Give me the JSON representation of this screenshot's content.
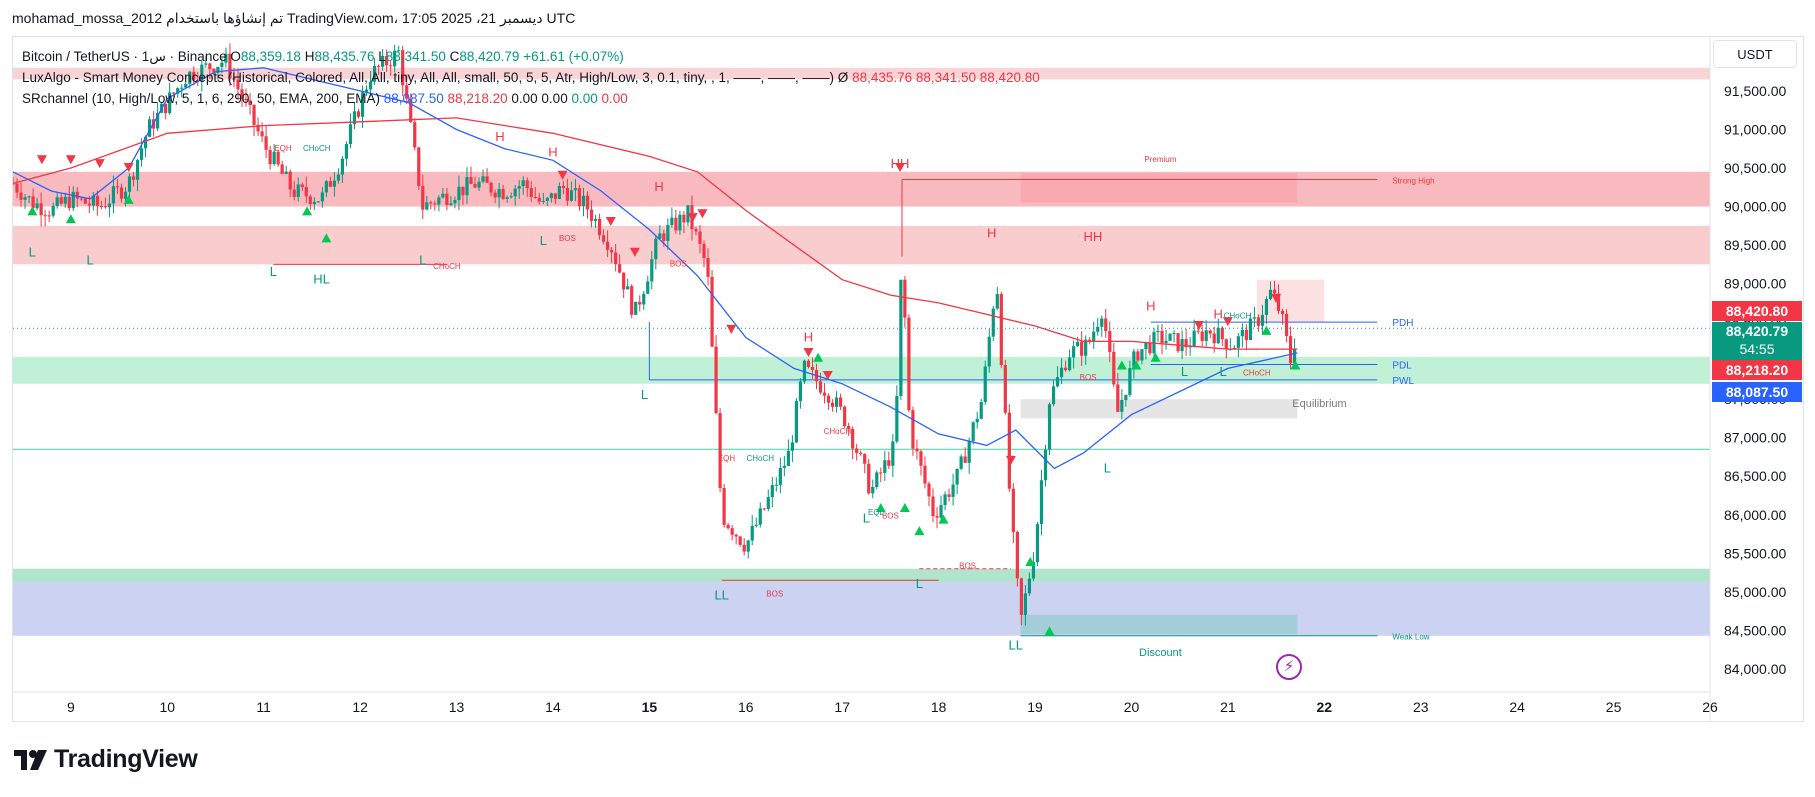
{
  "header": {
    "text": "mohamad_mossa_2012 تم إنشاؤها باستخدام TradingView.com، 17:05 ديسمبر 21، 2025 UTC"
  },
  "legend": {
    "row1": {
      "name": "Bitcoin / TetherUS · 1س · Binance",
      "o_label": "O",
      "o": "88,359.18",
      "h_label": "H",
      "h": "88,435.76",
      "l_label": "L",
      "l": "88,341.50",
      "c_label": "C",
      "c": "88,420.79",
      "change": "+61.61 (+0.07%)"
    },
    "row2": {
      "name": "LuxAlgo - Smart Money Concepts (Historical, Colored, All, All, tiny, All, All, small, 50, 5, 5, Atr, High/Low, 3, 0.1, tiny, , 1, ——, ——, ——) Ø",
      "v1": "88,435.76",
      "v2": "88,341.50",
      "v3": "88,420.80"
    },
    "row3": {
      "name": "SRchannel (10, High/Low, 5, 1, 6, 290, 50, EMA, 200, EMA)",
      "v1": "88,087.50",
      "v2": "88,218.20",
      "v3": "0.00",
      "v4": "0.00",
      "v5": "0.00",
      "v6": "0.00"
    }
  },
  "currency": "USDT",
  "price_tags": [
    {
      "label": "88,420.80",
      "color": "#f23645",
      "value": 88420.8
    },
    {
      "label": "88,420.79",
      "sub": "54:55",
      "color": "#089981",
      "value": 88420.79
    },
    {
      "label": "88,218.20",
      "color": "#f23645",
      "value": 88218.2
    },
    {
      "label": "88,087.50",
      "color": "#2962ff",
      "value": 88087.5
    }
  ],
  "chart_data": {
    "type": "candlestick",
    "symbol": "Bitcoin / TetherUS",
    "interval": "1H",
    "x_ticks": [
      "9",
      "10",
      "11",
      "12",
      "13",
      "14",
      "15",
      "16",
      "17",
      "18",
      "19",
      "20",
      "21",
      "22",
      "23",
      "24",
      "25",
      "26"
    ],
    "x_range_days": [
      8.4,
      26
    ],
    "ylim": [
      83700,
      92200
    ],
    "y_ticks": [
      84000,
      84500,
      85000,
      85500,
      86000,
      86500,
      87000,
      87500,
      88000,
      88500,
      89000,
      89500,
      90000,
      90500,
      91000,
      91500
    ],
    "y_tick_labels": [
      "84,000.00",
      "84,500.00",
      "85,000.00",
      "85,500.00",
      "86,000.00",
      "86,500.00",
      "87,000.00",
      "87,500.00",
      "88,000.00",
      "88,500.00",
      "89,000.00",
      "89,500.00",
      "90,000.00",
      "90,500.00",
      "91,000.00",
      "91,500.00"
    ],
    "close_path": [
      [
        8.4,
        90300
      ],
      [
        8.6,
        90050
      ],
      [
        8.8,
        89950
      ],
      [
        9.0,
        90100
      ],
      [
        9.3,
        90000
      ],
      [
        9.6,
        90300
      ],
      [
        9.8,
        91000
      ],
      [
        10.2,
        91700
      ],
      [
        10.6,
        91900
      ],
      [
        11.0,
        90800
      ],
      [
        11.3,
        90200
      ],
      [
        11.6,
        90100
      ],
      [
        11.8,
        90600
      ],
      [
        12.1,
        91700
      ],
      [
        12.4,
        92000
      ],
      [
        12.65,
        90000
      ],
      [
        12.9,
        90150
      ],
      [
        13.2,
        90300
      ],
      [
        13.5,
        90200
      ],
      [
        13.7,
        90300
      ],
      [
        13.9,
        90000
      ],
      [
        14.1,
        90250
      ],
      [
        14.35,
        90000
      ],
      [
        14.6,
        89500
      ],
      [
        14.85,
        88600
      ],
      [
        15.1,
        89600
      ],
      [
        15.4,
        89900
      ],
      [
        15.6,
        89200
      ],
      [
        15.75,
        86000
      ],
      [
        16.0,
        85600
      ],
      [
        16.2,
        86100
      ],
      [
        16.45,
        86800
      ],
      [
        16.6,
        87900
      ],
      [
        16.85,
        87600
      ],
      [
        17.05,
        87200
      ],
      [
        17.3,
        86300
      ],
      [
        17.55,
        86900
      ],
      [
        17.62,
        89400
      ],
      [
        17.7,
        87100
      ],
      [
        17.95,
        86000
      ],
      [
        18.2,
        86500
      ],
      [
        18.45,
        87500
      ],
      [
        18.6,
        89100
      ],
      [
        18.75,
        86000
      ],
      [
        18.85,
        84600
      ],
      [
        19.0,
        85600
      ],
      [
        19.15,
        87500
      ],
      [
        19.35,
        88100
      ],
      [
        19.55,
        88200
      ],
      [
        19.7,
        88700
      ],
      [
        19.85,
        87300
      ],
      [
        20.05,
        88100
      ],
      [
        20.3,
        88300
      ],
      [
        20.55,
        88200
      ],
      [
        20.8,
        88400
      ],
      [
        21.05,
        88200
      ],
      [
        21.3,
        88500
      ],
      [
        21.45,
        88900
      ],
      [
        21.55,
        88600
      ],
      [
        21.65,
        88000
      ],
      [
        21.72,
        88420.79
      ]
    ],
    "ema_red": [
      [
        8.4,
        90300
      ],
      [
        9.0,
        90500
      ],
      [
        10.0,
        90950
      ],
      [
        11.0,
        91050
      ],
      [
        12.0,
        91100
      ],
      [
        13.0,
        91150
      ],
      [
        14.0,
        90950
      ],
      [
        15.0,
        90650
      ],
      [
        15.5,
        90450
      ],
      [
        16.0,
        89950
      ],
      [
        16.5,
        89500
      ],
      [
        17.0,
        89050
      ],
      [
        17.5,
        88850
      ],
      [
        18.0,
        88750
      ],
      [
        18.5,
        88600
      ],
      [
        19.0,
        88450
      ],
      [
        19.5,
        88250
      ],
      [
        20.0,
        88250
      ],
      [
        20.5,
        88200
      ],
      [
        21.0,
        88150
      ],
      [
        21.72,
        88150
      ]
    ],
    "ema_blue": [
      [
        8.4,
        90450
      ],
      [
        8.8,
        90200
      ],
      [
        9.2,
        90100
      ],
      [
        9.6,
        90500
      ],
      [
        10.0,
        91400
      ],
      [
        10.5,
        91750
      ],
      [
        11.0,
        91800
      ],
      [
        11.5,
        91650
      ],
      [
        12.0,
        91500
      ],
      [
        12.5,
        91350
      ],
      [
        13.0,
        91000
      ],
      [
        13.5,
        90750
      ],
      [
        14.0,
        90600
      ],
      [
        14.5,
        90200
      ],
      [
        15.0,
        89700
      ],
      [
        15.5,
        89100
      ],
      [
        16.0,
        88300
      ],
      [
        16.5,
        87900
      ],
      [
        17.0,
        87700
      ],
      [
        17.5,
        87400
      ],
      [
        18.0,
        87050
      ],
      [
        18.5,
        86900
      ],
      [
        18.8,
        87100
      ],
      [
        19.2,
        86600
      ],
      [
        19.5,
        86800
      ],
      [
        20.0,
        87300
      ],
      [
        20.5,
        87600
      ],
      [
        21.0,
        87900
      ],
      [
        21.72,
        88100
      ]
    ],
    "zones": [
      {
        "y0": 91800,
        "y1": 91650,
        "color": "#f7c9cc",
        "opacity": 0.8
      },
      {
        "y0": 90450,
        "y1": 90000,
        "color": "#f7b3b7",
        "opacity": 0.9
      },
      {
        "y0": 89750,
        "y1": 89250,
        "color": "#f8c6c9",
        "opacity": 0.9
      },
      {
        "y0": 88050,
        "y1": 87700,
        "color": "#b9f0d2",
        "opacity": 0.9
      },
      {
        "y0": 85300,
        "y1": 85120,
        "color": "#a8e0c8",
        "opacity": 0.9
      },
      {
        "y0": 85120,
        "y1": 84430,
        "color": "#c5cdf1",
        "opacity": 0.9
      }
    ],
    "boxes": [
      {
        "x0": 18.85,
        "x1": 21.72,
        "y0": 90430,
        "y1": 90050,
        "color": "#f7a9ae",
        "opacity": 0.9
      },
      {
        "x0": 21.3,
        "x1": 22.0,
        "y0": 89050,
        "y1": 88500,
        "color": "#fde0e2",
        "opacity": 1
      },
      {
        "x0": 18.85,
        "x1": 21.72,
        "y0": 87500,
        "y1": 87250,
        "color": "#e5e5e5",
        "opacity": 1
      },
      {
        "x0": 18.85,
        "x1": 21.72,
        "y0": 84700,
        "y1": 84450,
        "color": "#9fccd6",
        "opacity": 0.9
      }
    ],
    "lines": [
      {
        "x0": 17.62,
        "x1": 22.55,
        "y": 90350,
        "color": "#f23645",
        "label": "Strong High"
      },
      {
        "x0": 20.2,
        "x1": 22.55,
        "y": 88500,
        "color": "#2962ff",
        "label": "PDH"
      },
      {
        "x0": 20.2,
        "x1": 22.55,
        "y": 87950,
        "color": "#2962ff",
        "label": "PDL"
      },
      {
        "x0": 15.0,
        "x1": 22.55,
        "y": 87750,
        "color": "#2962ff",
        "label": "PWL"
      },
      {
        "x0": 8.4,
        "x1": 26,
        "y": 86850,
        "color": "#4cd0a0",
        "label": ""
      },
      {
        "x0": 18.85,
        "x1": 22.55,
        "y": 84430,
        "color": "#089981",
        "label": "Weak Low"
      }
    ],
    "labels": [
      {
        "text": "Premium",
        "x": 20.3,
        "y": 90580,
        "color": "#f23645"
      },
      {
        "text": "Equilibrium",
        "x": 21.95,
        "y": 87400,
        "color": "#787b86"
      },
      {
        "text": "Discount",
        "x": 20.3,
        "y": 84170,
        "color": "#089981"
      },
      {
        "text": "CHoCH",
        "x": 12.9,
        "y": 89190,
        "color": "#f23645"
      },
      {
        "text": "BOS",
        "x": 16.3,
        "y": 84940,
        "color": "#f23645"
      },
      {
        "text": "BOS",
        "x": 14.15,
        "y": 89550,
        "color": "#f23645"
      },
      {
        "text": "BOS",
        "x": 15.3,
        "y": 89220,
        "color": "#f23645"
      },
      {
        "text": "BOS",
        "x": 18.3,
        "y": 85300,
        "color": "#f23645"
      },
      {
        "text": "BOS",
        "x": 19.55,
        "y": 87750,
        "color": "#f23645"
      },
      {
        "text": "BOS",
        "x": 17.5,
        "y": 85950,
        "color": "#f23645"
      },
      {
        "text": "CHoCH",
        "x": 16.95,
        "y": 87050,
        "color": "#f23645"
      },
      {
        "text": "CHoCH",
        "x": 16.15,
        "y": 86700,
        "color": "#089981"
      },
      {
        "text": "EQH",
        "x": 15.8,
        "y": 86700,
        "color": "#f23645"
      },
      {
        "text": "CHoCH",
        "x": 11.55,
        "y": 90720,
        "color": "#089981"
      },
      {
        "text": "EQH",
        "x": 11.2,
        "y": 90720,
        "color": "#f23645"
      },
      {
        "text": "CHoCH",
        "x": 21.3,
        "y": 87810,
        "color": "#f23645"
      },
      {
        "text": "CHoCH",
        "x": 21.1,
        "y": 88550,
        "color": "#089981"
      },
      {
        "text": "EQL",
        "x": 17.35,
        "y": 86000,
        "color": "#089981"
      },
      {
        "text": "H",
        "x": 13.45,
        "y": 90850,
        "color": "#f23645"
      },
      {
        "text": "H",
        "x": 14.0,
        "y": 90650,
        "color": "#f23645"
      },
      {
        "text": "H",
        "x": 15.1,
        "y": 90200,
        "color": "#f23645"
      },
      {
        "text": "H",
        "x": 16.65,
        "y": 88250,
        "color": "#f23645"
      },
      {
        "text": "H",
        "x": 18.55,
        "y": 89600,
        "color": "#f23645"
      },
      {
        "text": "HH",
        "x": 19.6,
        "y": 89550,
        "color": "#f23645"
      },
      {
        "text": "HH",
        "x": 17.6,
        "y": 90500,
        "color": "#f23645"
      },
      {
        "text": "H",
        "x": 20.2,
        "y": 88650,
        "color": "#f23645"
      },
      {
        "text": "H",
        "x": 20.9,
        "y": 88550,
        "color": "#f23645"
      },
      {
        "text": "L",
        "x": 8.6,
        "y": 89350,
        "color": "#089981"
      },
      {
        "text": "L",
        "x": 9.2,
        "y": 89250,
        "color": "#089981"
      },
      {
        "text": "L",
        "x": 11.1,
        "y": 89100,
        "color": "#089981"
      },
      {
        "text": "HL",
        "x": 11.6,
        "y": 89000,
        "color": "#089981"
      },
      {
        "text": "L",
        "x": 12.65,
        "y": 89250,
        "color": "#089981"
      },
      {
        "text": "L",
        "x": 13.9,
        "y": 89500,
        "color": "#089981"
      },
      {
        "text": "L",
        "x": 14.95,
        "y": 87500,
        "color": "#089981"
      },
      {
        "text": "LL",
        "x": 15.75,
        "y": 84900,
        "color": "#089981"
      },
      {
        "text": "L",
        "x": 17.25,
        "y": 85900,
        "color": "#089981"
      },
      {
        "text": "L",
        "x": 17.8,
        "y": 85050,
        "color": "#089981"
      },
      {
        "text": "LL",
        "x": 18.8,
        "y": 84250,
        "color": "#089981"
      },
      {
        "text": "L",
        "x": 19.75,
        "y": 86550,
        "color": "#089981"
      },
      {
        "text": "L",
        "x": 20.55,
        "y": 87800,
        "color": "#089981"
      },
      {
        "text": "L",
        "x": 20.95,
        "y": 87800,
        "color": "#089981"
      }
    ],
    "triangles_up": [
      [
        8.6,
        89950
      ],
      [
        9.0,
        89850
      ],
      [
        9.6,
        90100
      ],
      [
        11.45,
        89950
      ],
      [
        11.65,
        89600
      ],
      [
        16.75,
        88050
      ],
      [
        17.4,
        86100
      ],
      [
        17.65,
        86100
      ],
      [
        17.8,
        85800
      ],
      [
        18.05,
        85950
      ],
      [
        18.95,
        85400
      ],
      [
        19.15,
        84500
      ],
      [
        19.9,
        87950
      ],
      [
        20.05,
        87950
      ],
      [
        20.25,
        88050
      ],
      [
        21.4,
        88400
      ],
      [
        21.7,
        87950
      ]
    ],
    "triangles_down": [
      [
        8.7,
        90600
      ],
      [
        9.0,
        90600
      ],
      [
        9.3,
        90550
      ],
      [
        9.6,
        90500
      ],
      [
        14.1,
        90400
      ],
      [
        14.6,
        89800
      ],
      [
        14.85,
        89400
      ],
      [
        15.45,
        89850
      ],
      [
        15.55,
        89900
      ],
      [
        15.85,
        88400
      ],
      [
        16.65,
        88100
      ],
      [
        16.85,
        87800
      ],
      [
        17.6,
        90500
      ],
      [
        18.75,
        86700
      ],
      [
        20.7,
        88450
      ],
      [
        21.0,
        88500
      ],
      [
        21.5,
        88800
      ]
    ]
  }
}
